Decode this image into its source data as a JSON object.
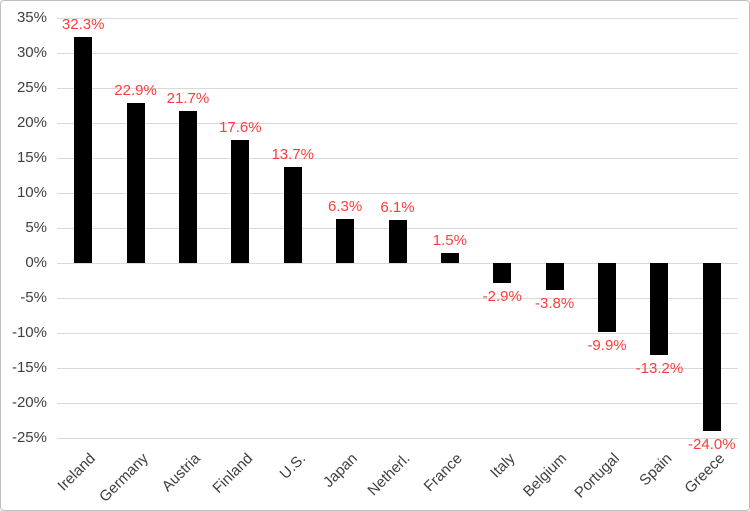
{
  "chart_data": {
    "type": "bar",
    "title": "",
    "categories": [
      "Ireland",
      "Germany",
      "Austria",
      "Finland",
      "U.S.",
      "Japan",
      "Netherl.",
      "France",
      "Italy",
      "Belgium",
      "Portugal",
      "Spain",
      "Greece"
    ],
    "values": [
      32.3,
      22.9,
      21.7,
      17.6,
      13.7,
      6.3,
      6.1,
      1.5,
      -2.9,
      -3.8,
      -9.9,
      -13.2,
      -24.0
    ],
    "data_labels": [
      "32.3%",
      "22.9%",
      "21.7%",
      "17.6%",
      "13.7%",
      "6.3%",
      "6.1%",
      "1.5%",
      "-2.9%",
      "-3.8%",
      "-9.9%",
      "-13.2%",
      "-24.0%"
    ],
    "y_ticks": [
      {
        "label": "35%",
        "value": 35
      },
      {
        "label": "30%",
        "value": 30
      },
      {
        "label": "25%",
        "value": 25
      },
      {
        "label": "20%",
        "value": 20
      },
      {
        "label": "15%",
        "value": 15
      },
      {
        "label": "10%",
        "value": 10
      },
      {
        "label": "5%",
        "value": 5
      },
      {
        "label": "0%",
        "value": 0
      },
      {
        "label": "-5%",
        "value": -5
      },
      {
        "label": "-10%",
        "value": -10
      },
      {
        "label": "-15%",
        "value": -15
      },
      {
        "label": "-20%",
        "value": -20
      },
      {
        "label": "-25%",
        "value": -25
      }
    ],
    "ylim": [
      -25,
      35
    ],
    "xlabel": "",
    "ylabel": "",
    "grid": true,
    "legend": "none",
    "colors": {
      "bar": "#000000",
      "data_label": "#ff3b3b",
      "axis_text": "#3f3f3f",
      "gridline": "#d9d9d9",
      "frame_border": "#bfbfbf",
      "background": "#ffffff"
    }
  }
}
